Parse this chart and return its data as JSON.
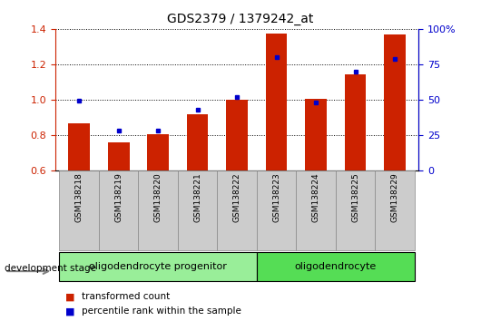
{
  "title": "GDS2379 / 1379242_at",
  "samples": [
    "GSM138218",
    "GSM138219",
    "GSM138220",
    "GSM138221",
    "GSM138222",
    "GSM138223",
    "GSM138224",
    "GSM138225",
    "GSM138229"
  ],
  "transformed_counts": [
    0.865,
    0.755,
    0.805,
    0.915,
    1.0,
    1.375,
    1.005,
    1.14,
    1.37
  ],
  "percentile_ranks": [
    49,
    28,
    28,
    43,
    52,
    80,
    48,
    70,
    79
  ],
  "ylim_left": [
    0.6,
    1.4
  ],
  "ylim_right": [
    0,
    100
  ],
  "yticks_left": [
    0.6,
    0.8,
    1.0,
    1.2,
    1.4
  ],
  "yticks_right": [
    0,
    25,
    50,
    75,
    100
  ],
  "bar_color": "#CC2200",
  "dot_color": "#0000CC",
  "groups": [
    {
      "label": "oligodendrocyte progenitor",
      "indices": [
        0,
        1,
        2,
        3,
        4
      ],
      "color": "#99EE99"
    },
    {
      "label": "oligodendrocyte",
      "indices": [
        5,
        6,
        7,
        8
      ],
      "color": "#55DD55"
    }
  ],
  "group_bg_color": "#CCCCCC",
  "legend_bar_label": "transformed count",
  "legend_dot_label": "percentile rank within the sample",
  "dev_stage_label": "development stage",
  "ylabel_left_color": "#CC2200",
  "ylabel_right_color": "#0000CC"
}
